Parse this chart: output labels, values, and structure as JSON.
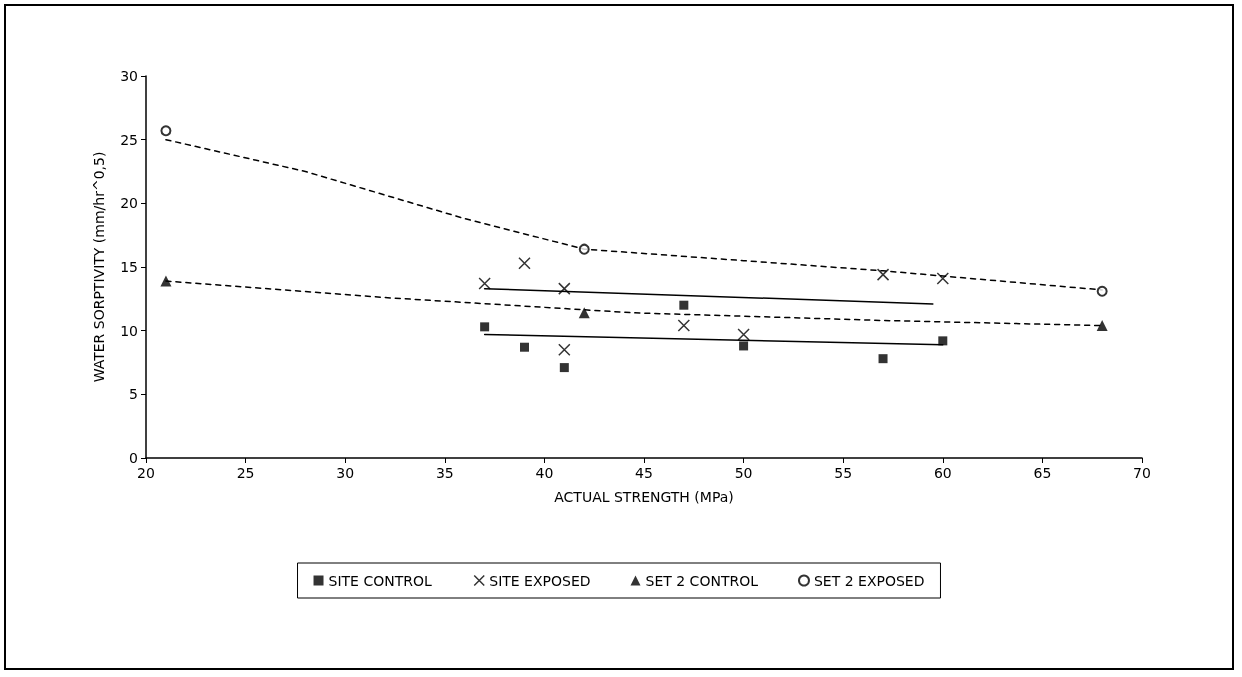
{
  "chart_data": {
    "type": "scatter",
    "xlabel": "ACTUAL STRENGTH (MPa)",
    "ylabel": "WATER SORPTIVITY (mm/hr^0,5)",
    "xlim": [
      20,
      70
    ],
    "xticks": [
      20,
      25,
      30,
      35,
      40,
      45,
      50,
      55,
      60,
      65,
      70
    ],
    "ylim": [
      0,
      30
    ],
    "yticks": [
      0,
      5,
      10,
      15,
      20,
      25,
      30
    ],
    "grid": false,
    "legend": "bottom",
    "series": [
      {
        "name": "SITE CONTROL",
        "color": "#000000",
        "marker": "square",
        "x": [
          37,
          39,
          41,
          47,
          50,
          57,
          60
        ],
        "values": [
          10.3,
          8.7,
          7.1,
          12.0,
          8.8,
          7.8,
          9.2
        ]
      },
      {
        "name": "SITE EXPOSED",
        "color": "#000000",
        "marker": "cross",
        "x": [
          37,
          39,
          41,
          41,
          47,
          50,
          57,
          60
        ],
        "values": [
          13.7,
          15.3,
          13.3,
          8.5,
          10.4,
          9.7,
          14.4,
          14.1
        ]
      },
      {
        "name": "SET 2 CONTROL",
        "color": "#000000",
        "marker": "triangle",
        "x": [
          21,
          42,
          68
        ],
        "values": [
          13.9,
          11.4,
          10.4
        ]
      },
      {
        "name": "SET 2 EXPOSED",
        "color": "#000000",
        "marker": "circle",
        "x": [
          21,
          42,
          68
        ],
        "values": [
          25.7,
          16.4,
          13.1
        ]
      },
      {
        "type": "line",
        "color": "#000000",
        "line_style": "solid",
        "x": [
          37,
          60
        ],
        "values": [
          9.7,
          8.9
        ]
      },
      {
        "type": "line",
        "color": "#000000",
        "line_style": "solid",
        "x": [
          37,
          59.5
        ],
        "values": [
          13.3,
          12.1
        ]
      },
      {
        "type": "line",
        "color": "#000000",
        "line_style": "dashed",
        "x": [
          21,
          32,
          44.5,
          57,
          68
        ],
        "values": [
          13.9,
          12.6,
          11.4,
          10.8,
          10.4
        ]
      },
      {
        "type": "line",
        "color": "#000000",
        "line_style": "dashed",
        "x": [
          21,
          28,
          36,
          42,
          50,
          57,
          68
        ],
        "values": [
          25.0,
          22.5,
          18.8,
          16.4,
          15.5,
          14.7,
          13.2
        ]
      }
    ]
  }
}
